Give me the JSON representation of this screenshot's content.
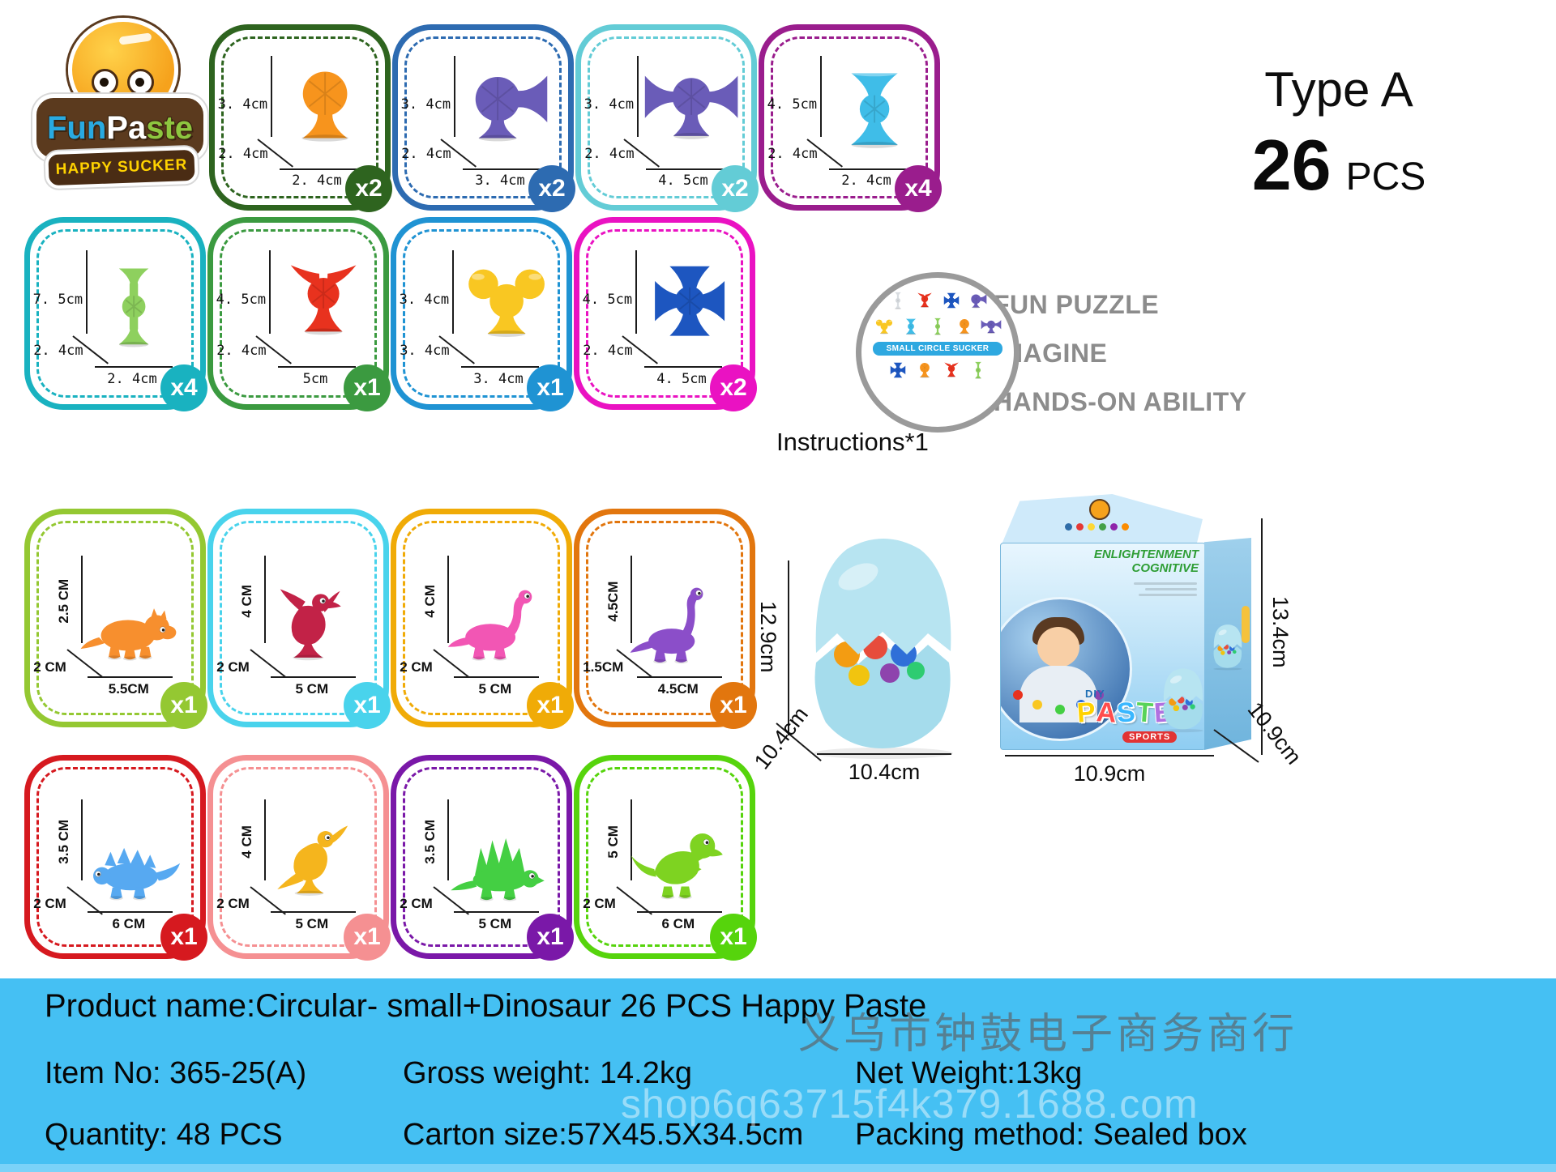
{
  "logo": {
    "fun": "Fun",
    "pa": "Pa",
    "ste": "ste",
    "tagline": "HAPPY SUCKER"
  },
  "header": {
    "type_label": "Type A",
    "count": "26",
    "unit": "PCS"
  },
  "features": {
    "items": [
      "FUN PUZZLE",
      "IMAGINE",
      "HANDS-ON ABILITY"
    ],
    "instructions_label": "Instructions*1",
    "mini_banner": "SMALL CIRCLE SUCKER",
    "bullet_color": "#9a9a9a",
    "text_color": "#8c8c8c"
  },
  "tiles": [
    {
      "name": "orange-ball-sucker",
      "shape": "ball",
      "color": "#f7941d",
      "border": "#2e641f",
      "qty": "x2",
      "h": "3. 4cm",
      "d": "2. 4cm",
      "w": "2. 4cm",
      "rot": false
    },
    {
      "name": "purple-side-sucker",
      "shape": "side",
      "color": "#6a5cb8",
      "border": "#2d6bb1",
      "qty": "x2",
      "h": "3. 4cm",
      "d": "2. 4cm",
      "w": "3. 4cm",
      "rot": false
    },
    {
      "name": "purple-wide-sucker",
      "shape": "wide",
      "color": "#6a5cb8",
      "border": "#63ccd6",
      "qty": "x2",
      "h": "3. 4cm",
      "d": "2. 4cm",
      "w": "4. 5cm",
      "rot": false
    },
    {
      "name": "blue-hourglass-sucker",
      "shape": "hourglass",
      "color": "#3fbde8",
      "border": "#9a1d8d",
      "qty": "x4",
      "h": "4. 5cm",
      "d": "2. 4cm",
      "w": "2. 4cm",
      "rot": false
    },
    {
      "name": "green-stick-sucker",
      "shape": "stick",
      "color": "#8ed05e",
      "border": "#19b2c0",
      "qty": "x4",
      "h": "7. 5cm",
      "d": "2. 4cm",
      "w": "2. 4cm",
      "rot": false
    },
    {
      "name": "red-wing-sucker",
      "shape": "bat3",
      "color": "#e8321e",
      "border": "#3b9a40",
      "qty": "x1",
      "h": "4. 5cm",
      "d": "2. 4cm",
      "w": "5cm",
      "rot": false
    },
    {
      "name": "yellow-triple-sucker",
      "shape": "tri3",
      "color": "#f9c722",
      "border": "#1f93d3",
      "qty": "x1",
      "h": "3. 4cm",
      "d": "3. 4cm",
      "w": "3. 4cm",
      "rot": false
    },
    {
      "name": "blue-cross-sucker",
      "shape": "cross",
      "color": "#1d56c0",
      "border": "#ea12c2",
      "qty": "x2",
      "h": "4. 5cm",
      "d": "2. 4cm",
      "w": "4. 5cm",
      "rot": false
    },
    {
      "name": "orange-triceratops",
      "shape": "dino_tric",
      "color": "#f78f2e",
      "border": "#94c832",
      "qty": "x1",
      "h": "2.5 CM",
      "d": "2 CM",
      "w": "5.5CM",
      "rot": true
    },
    {
      "name": "crimson-raptor",
      "shape": "dino_raptor",
      "color": "#c22247",
      "border": "#49d3ec",
      "qty": "x1",
      "h": "4 CM",
      "d": "2 CM",
      "w": "5 CM",
      "rot": true
    },
    {
      "name": "pink-brontosaurus",
      "shape": "dino_bronto",
      "color": "#f256b4",
      "border": "#f0ab07",
      "qty": "x1",
      "h": "4 CM",
      "d": "2 CM",
      "w": "5 CM",
      "rot": true
    },
    {
      "name": "purple-brachiosaurus",
      "shape": "dino_brachio",
      "color": "#8b4ec9",
      "border": "#e2760e",
      "qty": "x1",
      "h": "4.5CM",
      "d": "1.5CM",
      "w": "4.5CM",
      "rot": true
    },
    {
      "name": "blue-stegosaurus",
      "shape": "dino_stego",
      "color": "#57a9f1",
      "border": "#d6191f",
      "qty": "x1",
      "h": "3.5 CM",
      "d": "2 CM",
      "w": "6 CM",
      "rot": true
    },
    {
      "name": "yellow-parasaur",
      "shape": "dino_para",
      "color": "#f5b51d",
      "border": "#f59092",
      "qty": "x1",
      "h": "4 CM",
      "d": "2 CM",
      "w": "5 CM",
      "rot": true
    },
    {
      "name": "green-dimetrodon",
      "shape": "dino_dimet",
      "color": "#44cf43",
      "border": "#7a18a8",
      "qty": "x1",
      "h": "3.5 CM",
      "d": "2 CM",
      "w": "5 CM",
      "rot": true
    },
    {
      "name": "green-trex",
      "shape": "dino_trex",
      "color": "#7ed321",
      "border": "#56d40c",
      "qty": "x1",
      "h": "5 CM",
      "d": "2 CM",
      "w": "6 CM",
      "rot": true
    }
  ],
  "egg": {
    "height_label": "12.9cm",
    "depth_label": "10.4cm",
    "width_label": "10.4cm",
    "shell_color": "#a5dcec",
    "toy_colors": [
      "#f39c12",
      "#e74c3c",
      "#2f6fd8",
      "#f1c40f",
      "#8e44ad",
      "#2ecc71"
    ]
  },
  "box": {
    "height_label": "13.4cm",
    "width_label": "10.9cm",
    "depth_label": "10.9cm",
    "title_line1": "ENLIGHTENMENT",
    "title_line2": "COGNITIVE",
    "diy_label": "DIY",
    "paste_label": "PASTE",
    "sports_label": "SPORTS",
    "paste_colors": [
      "#ffd200",
      "#ff4d4d",
      "#39b7ff",
      "#58d35a",
      "#b070e0"
    ],
    "dot_colors": [
      "#2f6da8",
      "#e53935",
      "#fdd835",
      "#43a047",
      "#8e24aa",
      "#fb8c00"
    ]
  },
  "footer": {
    "bg_color": "#45c0f3",
    "product_name": "Product name:Circular- small+Dinosaur 26 PCS Happy Paste",
    "item_no": "Item No: 365-25(A)",
    "quantity": "Quantity: 48 PCS",
    "gross_weight": "Gross weight: 14.2kg",
    "carton_size": "Carton size:57X45.5X34.5cm",
    "net_weight": "Net Weight:13kg",
    "packing_method": "Packing method: Sealed box",
    "watermark_cn": "义乌市钟鼓电子商务商行",
    "watermark_site": "shop6q63715f4k379.1688.com"
  }
}
